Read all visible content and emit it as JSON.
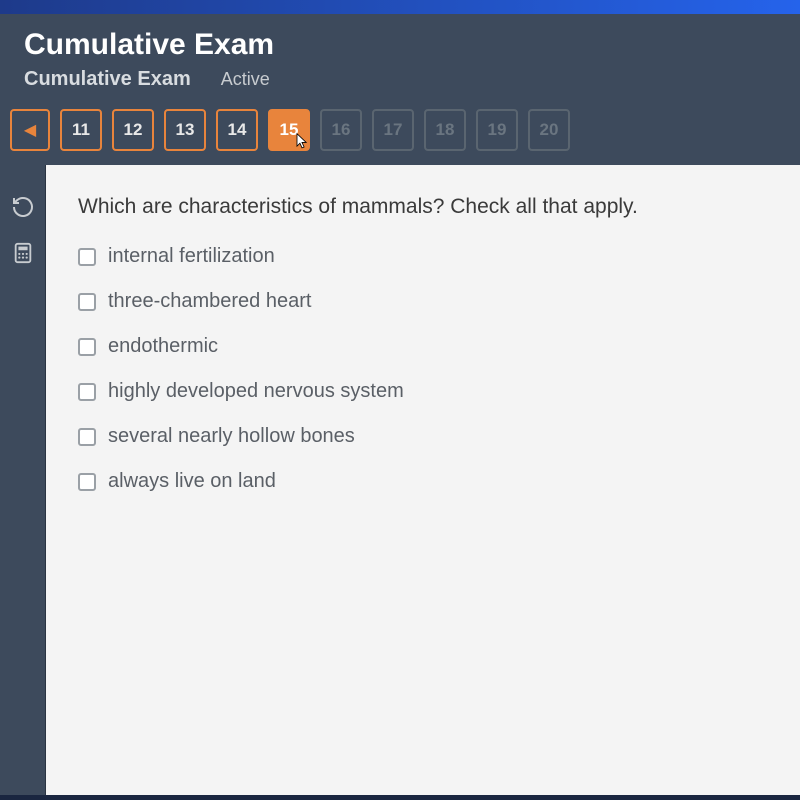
{
  "colors": {
    "header_bg": "#3d4a5c",
    "accent": "#e8843c",
    "disabled_border": "#5a6570",
    "disabled_text": "#6a7580",
    "content_bg": "#f4f4f4",
    "question_text": "#3a3a3a",
    "option_text": "#5a5f66",
    "checkbox_border": "#9aa0a6"
  },
  "header": {
    "title": "Cumulative Exam",
    "subtitle": "Cumulative Exam",
    "active_label": "Active"
  },
  "nav": {
    "prev_glyph": "◀",
    "items": [
      {
        "n": "11",
        "state": "normal"
      },
      {
        "n": "12",
        "state": "normal"
      },
      {
        "n": "13",
        "state": "normal"
      },
      {
        "n": "14",
        "state": "normal"
      },
      {
        "n": "15",
        "state": "current"
      },
      {
        "n": "16",
        "state": "disabled"
      },
      {
        "n": "17",
        "state": "disabled"
      },
      {
        "n": "18",
        "state": "disabled"
      },
      {
        "n": "19",
        "state": "disabled"
      },
      {
        "n": "20",
        "state": "disabled"
      }
    ]
  },
  "tools": {
    "refresh": "refresh",
    "calculator": "calculator"
  },
  "question": {
    "prompt": "Which are characteristics of mammals? Check all that apply.",
    "options": [
      {
        "label": "internal fertilization",
        "checked": false
      },
      {
        "label": "three-chambered heart",
        "checked": false
      },
      {
        "label": "endothermic",
        "checked": false
      },
      {
        "label": "highly developed nervous system",
        "checked": false
      },
      {
        "label": "several nearly hollow bones",
        "checked": false
      },
      {
        "label": "always live on land",
        "checked": false
      }
    ]
  }
}
